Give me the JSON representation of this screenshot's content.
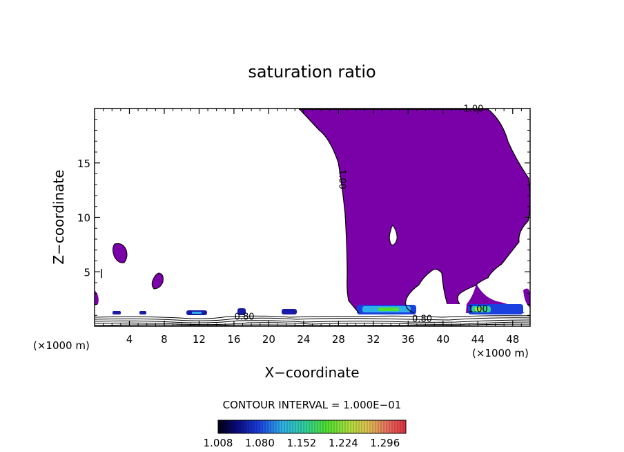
{
  "chart_data": {
    "type": "heatmap",
    "title": "saturation ratio",
    "xlabel": "X−coordinate",
    "ylabel": "Z−coordinate",
    "x_unit_left": "(×1000 m)",
    "x_unit_right": "(×1000 m)",
    "xlim": [
      0,
      50
    ],
    "ylim": [
      0,
      20
    ],
    "x_ticks": [
      4,
      8,
      12,
      16,
      20,
      24,
      28,
      32,
      36,
      40,
      44,
      48
    ],
    "y_ticks": [
      5,
      10,
      15
    ],
    "contour_interval_label": "CONTOUR INTERVAL =  1.000E−01",
    "colorbar_ticks": [
      "1.008",
      "1.080",
      "1.152",
      "1.224",
      "1.296"
    ],
    "colorbar_range": [
      1.008,
      1.332
    ],
    "contour_labels": [
      {
        "text": "1.00",
        "x": 43.5,
        "y": 19.7,
        "rotate": 0
      },
      {
        "text": "1.00",
        "x": 28.1,
        "y": 13.5,
        "rotate": 90
      },
      {
        "text": "0.80",
        "x": 17.2,
        "y": 0.6,
        "rotate": 0
      },
      {
        "text": "0.80",
        "x": 37.6,
        "y": 0.4,
        "rotate": 0
      },
      {
        "text": "1.00",
        "x": 44.0,
        "y": 1.3,
        "rotate": 0
      }
    ],
    "colors": {
      "supersaturated_fill": "#7a00a8",
      "contour_line": "#000000"
    }
  }
}
